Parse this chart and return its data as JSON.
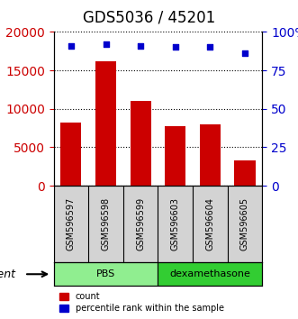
{
  "title": "GDS5036 / 45201",
  "samples": [
    "GSM596597",
    "GSM596598",
    "GSM596599",
    "GSM596603",
    "GSM596604",
    "GSM596605"
  ],
  "counts": [
    8200,
    16200,
    11000,
    7700,
    8000,
    3300
  ],
  "percentiles": [
    91,
    92,
    91,
    90,
    90,
    86
  ],
  "bar_color": "#cc0000",
  "dot_color": "#0000cc",
  "left_ylim": [
    0,
    20000
  ],
  "right_ylim": [
    0,
    100
  ],
  "left_yticks": [
    0,
    5000,
    10000,
    15000,
    20000
  ],
  "right_yticks": [
    0,
    25,
    50,
    75,
    100
  ],
  "right_yticklabels": [
    "0",
    "25",
    "50",
    "75",
    "100%"
  ],
  "groups": [
    {
      "label": "PBS",
      "start": 0,
      "end": 3,
      "color": "#90ee90"
    },
    {
      "label": "dexamethasone",
      "start": 3,
      "end": 6,
      "color": "#32cd32"
    }
  ],
  "group_label_prefix": "agent",
  "legend_count_label": "count",
  "legend_pct_label": "percentile rank within the sample",
  "grid_color": "#000000",
  "background_color": "#ffffff",
  "plot_bg_color": "#ffffff",
  "label_area_color": "#d3d3d3",
  "title_fontsize": 12
}
